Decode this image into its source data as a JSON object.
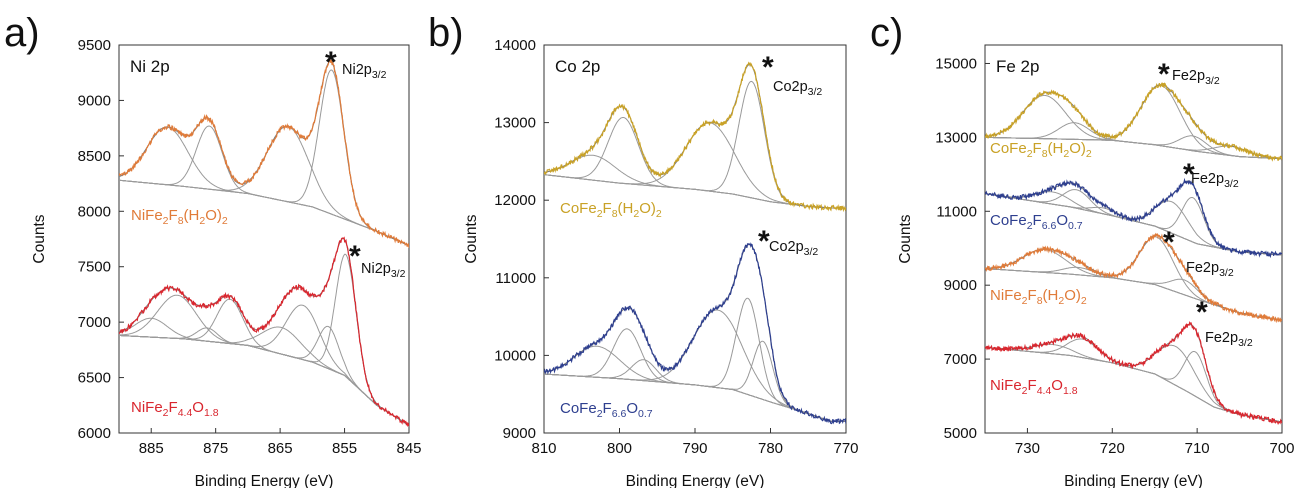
{
  "chart_data": [
    {
      "type": "line",
      "panel": "a)",
      "element": "Ni 2p",
      "xlabel": "Binding Energy (eV)",
      "ylabel": "Counts",
      "xlim": [
        890,
        845
      ],
      "ylim": [
        6000,
        9500
      ],
      "xticks": [
        "885",
        "875",
        "865",
        "855",
        "845"
      ],
      "yticks": [
        "6000",
        "6500",
        "7000",
        "7500",
        "8000",
        "8500",
        "9000",
        "9500"
      ],
      "series": [
        {
          "name": "NiFe2F8(H2O)2",
          "label_base": "NiFe",
          "label_parts": [
            "2",
            "F",
            "8",
            "(H",
            "2",
            "O)",
            "2"
          ],
          "color": "#E07B39",
          "background": [
            [
              890,
              8280
            ],
            [
              880,
              8225
            ],
            [
              870,
              8160
            ],
            [
              860,
              8040
            ],
            [
              850,
              7820
            ],
            [
              845,
              7690
            ]
          ],
          "peaks": [
            {
              "center": 882.5,
              "height": 520,
              "width": 3.2
            },
            {
              "center": 876.0,
              "height": 570,
              "width": 2.0
            },
            {
              "center": 863.8,
              "height": 680,
              "width": 3.2
            },
            {
              "center": 857.0,
              "height": 1300,
              "width": 1.9
            }
          ],
          "annotation": {
            "star_x": 856.0,
            "text_base": "Ni2p",
            "text_sub": "3/2"
          }
        },
        {
          "name": "NiFe2F4.4O1.8",
          "label_base": "NiFe",
          "label_parts": [
            "2",
            "F",
            "4.4",
            "O",
            "1.8"
          ],
          "color": "#D9262E",
          "background": [
            [
              890,
              6880
            ],
            [
              880,
              6850
            ],
            [
              870,
              6790
            ],
            [
              860,
              6640
            ],
            [
              855,
              6520
            ],
            [
              850,
              6250
            ],
            [
              845,
              6070
            ]
          ],
          "peaks": [
            {
              "center": 885.0,
              "height": 170,
              "width": 2.5
            },
            {
              "center": 881.0,
              "height": 390,
              "width": 3.0
            },
            {
              "center": 876.3,
              "height": 120,
              "width": 1.6
            },
            {
              "center": 872.8,
              "height": 400,
              "width": 2.0
            },
            {
              "center": 864.8,
              "height": 240,
              "width": 3.0
            },
            {
              "center": 861.5,
              "height": 490,
              "width": 2.6
            },
            {
              "center": 857.5,
              "height": 380,
              "width": 1.6
            },
            {
              "center": 854.8,
              "height": 1100,
              "width": 1.6
            }
          ],
          "annotation": {
            "star_x": 853.5,
            "text_base": "Ni2p",
            "text_sub": "3/2"
          }
        }
      ]
    },
    {
      "type": "line",
      "panel": "b)",
      "element": "Co 2p",
      "xlabel": "Binding Energy (eV)",
      "ylabel": "Counts",
      "xlim": [
        810,
        770
      ],
      "ylim": [
        9000,
        14000
      ],
      "xticks": [
        "810",
        "800",
        "790",
        "780",
        "770"
      ],
      "yticks": [
        "9000",
        "10000",
        "11000",
        "12000",
        "13000",
        "14000"
      ],
      "series": [
        {
          "name": "CoFe2F8(H2O)2",
          "label_base": "CoFe",
          "label_parts": [
            "2",
            "F",
            "8",
            "(H",
            "2",
            "O)",
            "2"
          ],
          "color": "#C9A227",
          "background": [
            [
              810,
              12330
            ],
            [
              800,
              12220
            ],
            [
              790,
              12140
            ],
            [
              785,
              12080
            ],
            [
              780,
              11980
            ],
            [
              775,
              11920
            ],
            [
              772,
              11900
            ]
          ],
          "peaks": [
            {
              "center": 803.5,
              "height": 320,
              "width": 3.0
            },
            {
              "center": 799.5,
              "height": 850,
              "width": 2.0
            },
            {
              "center": 788.0,
              "height": 880,
              "width": 3.2
            },
            {
              "center": 782.5,
              "height": 1500,
              "width": 1.7
            }
          ],
          "annotation": {
            "star_x": 780.5,
            "text_base": "Co2p",
            "text_sub": "3/2"
          }
        },
        {
          "name": "CoFe2F6.6O0.7",
          "label_base": "CoFe",
          "label_parts": [
            "2",
            "F",
            "6.6",
            "O",
            "0.7"
          ],
          "color": "#2E3F8F",
          "background": [
            [
              810,
              9760
            ],
            [
              800,
              9700
            ],
            [
              790,
              9620
            ],
            [
              785,
              9560
            ],
            [
              780,
              9400
            ],
            [
              775,
              9250
            ],
            [
              772,
              9150
            ]
          ],
          "peaks": [
            {
              "center": 803.0,
              "height": 400,
              "width": 3.0
            },
            {
              "center": 799.0,
              "height": 650,
              "width": 1.8
            },
            {
              "center": 796.8,
              "height": 270,
              "width": 1.6
            },
            {
              "center": 787.0,
              "height": 1000,
              "width": 3.2
            },
            {
              "center": 783.0,
              "height": 1240,
              "width": 1.5
            },
            {
              "center": 781.0,
              "height": 750,
              "width": 1.3
            }
          ],
          "annotation": {
            "star_x": 782.0,
            "text_base": "Co2p",
            "text_sub": "3/2"
          }
        }
      ]
    },
    {
      "type": "line",
      "panel": "c)",
      "element": "Fe 2p",
      "xlabel": "Binding Energy (eV)",
      "ylabel": "Counts",
      "xlim": [
        735,
        700
      ],
      "ylim": [
        5000,
        15500
      ],
      "xticks": [
        "730",
        "720",
        "710",
        "700"
      ],
      "yticks": [
        "5000",
        "7000",
        "9000",
        "11000",
        "13000",
        "15000"
      ],
      "series": [
        {
          "name": "CoFe2F8(H2O)2",
          "label_base": "CoFe",
          "label_parts": [
            "2",
            "F",
            "8",
            "(H",
            "2",
            "O)",
            "2"
          ],
          "color": "#C9A227",
          "background": [
            [
              735,
              13000
            ],
            [
              725,
              12950
            ],
            [
              720,
              12920
            ],
            [
              715,
              12800
            ],
            [
              710,
              12620
            ],
            [
              705,
              12480
            ],
            [
              700,
              12420
            ]
          ],
          "peaks": [
            {
              "center": 728.0,
              "height": 1170,
              "width": 2.5
            },
            {
              "center": 724.5,
              "height": 450,
              "width": 1.8
            },
            {
              "center": 714.3,
              "height": 1630,
              "width": 2.3
            },
            {
              "center": 710.5,
              "height": 400,
              "width": 1.6
            },
            {
              "center": 706.0,
              "height": 250,
              "width": 2.0
            }
          ],
          "annotation": {
            "star_x": 714.3,
            "text_base": "Fe2p",
            "text_sub": "3/2"
          }
        },
        {
          "name": "CoFe2F6.6O0.7",
          "label_base": "CoFe",
          "label_parts": [
            "2",
            "F",
            "6.6",
            "O",
            "0.7"
          ],
          "color": "#2E3F8F",
          "background": [
            [
              735,
              11480
            ],
            [
              725,
              11120
            ],
            [
              720,
              10880
            ],
            [
              715,
              10600
            ],
            [
              710,
              10120
            ],
            [
              705,
              9900
            ],
            [
              700,
              9820
            ]
          ],
          "peaks": [
            {
              "center": 727.0,
              "height": 330,
              "width": 2.0
            },
            {
              "center": 724.2,
              "height": 500,
              "width": 1.6
            },
            {
              "center": 721.0,
              "height": 160,
              "width": 1.5
            },
            {
              "center": 713.0,
              "height": 850,
              "width": 1.9
            },
            {
              "center": 710.5,
              "height": 1200,
              "width": 1.3
            }
          ],
          "annotation": {
            "star_x": 711.0,
            "text_base": "Fe2p",
            "text_sub": "3/2"
          }
        },
        {
          "name": "NiFe2F8(H2O)2",
          "label_base": "NiFe",
          "label_parts": [
            "2",
            "F",
            "8",
            "(H",
            "2",
            "O)",
            "2"
          ],
          "color": "#E07B39",
          "background": [
            [
              735,
              9450
            ],
            [
              725,
              9300
            ],
            [
              720,
              9200
            ],
            [
              715,
              9020
            ],
            [
              710,
              8620
            ],
            [
              705,
              8250
            ],
            [
              700,
              8050
            ]
          ],
          "peaks": [
            {
              "center": 728.0,
              "height": 620,
              "width": 2.5
            },
            {
              "center": 724.0,
              "height": 200,
              "width": 1.8
            },
            {
              "center": 714.8,
              "height": 1300,
              "width": 2.0
            },
            {
              "center": 711.5,
              "height": 400,
              "width": 1.6
            }
          ],
          "annotation": {
            "star_x": 714.8,
            "text_base": "Fe2p",
            "text_sub": "3/2"
          }
        },
        {
          "name": "NiFe2F4.4O1.8",
          "label_base": "NiFe",
          "label_parts": [
            "2",
            "F",
            "4.4",
            "O",
            "1.8"
          ],
          "color": "#D9262E",
          "background": [
            [
              735,
              7320
            ],
            [
              725,
              7100
            ],
            [
              720,
              6900
            ],
            [
              715,
              6600
            ],
            [
              711,
              6100
            ],
            [
              708,
              5700
            ],
            [
              705,
              5500
            ],
            [
              700,
              5300
            ]
          ],
          "peaks": [
            {
              "center": 727.0,
              "height": 250,
              "width": 2.2
            },
            {
              "center": 723.5,
              "height": 500,
              "width": 1.8
            },
            {
              "center": 712.5,
              "height": 1050,
              "width": 2.2
            },
            {
              "center": 710.2,
              "height": 1200,
              "width": 1.3
            }
          ],
          "annotation": {
            "star_x": 710.0,
            "text_base": "Fe2p",
            "text_sub": "3/2"
          }
        }
      ]
    }
  ]
}
